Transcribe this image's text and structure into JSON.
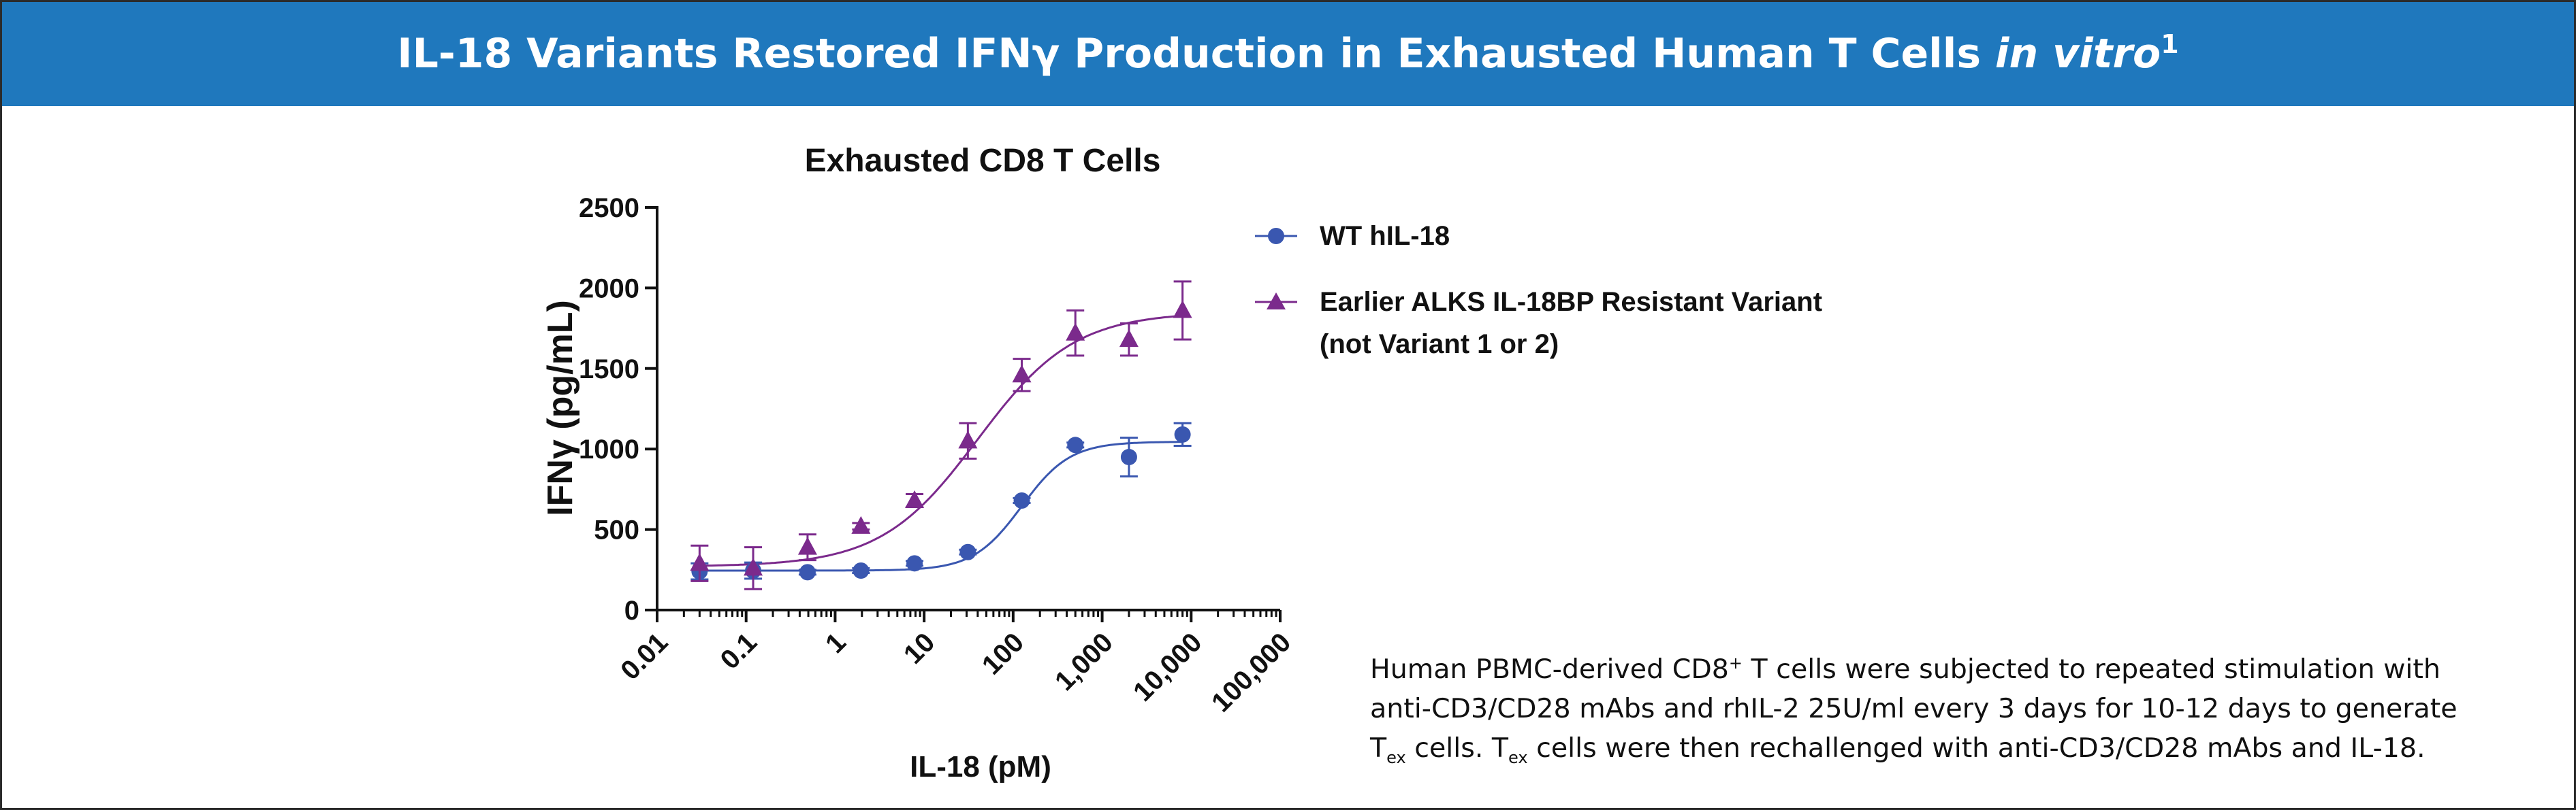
{
  "banner": {
    "title_main": "IL-18 Variants Restored IFNγ Production in Exhausted Human T Cells",
    "title_italic": "in vitro",
    "title_sup": "1",
    "bg_color": "#1f78bd"
  },
  "chart_data": {
    "type": "scatter",
    "title": "Exhausted CD8 T Cells",
    "xlabel": "IL-18 (pM)",
    "ylabel": "IFNγ (pg/mL)",
    "xscale": "log",
    "xlim": [
      0.01,
      100000
    ],
    "ylim": [
      0,
      2500
    ],
    "xticks": [
      0.01,
      0.1,
      1,
      10,
      100,
      1000,
      10000,
      100000
    ],
    "xtick_labels": [
      "0.01",
      "0.1",
      "1",
      "10",
      "100",
      "1,000",
      "10,000",
      "100,000"
    ],
    "yticks": [
      0,
      500,
      1000,
      1500,
      2000,
      2500
    ],
    "ytick_labels": [
      "0",
      "500",
      "1000",
      "1500",
      "2000",
      "2500"
    ],
    "legend_position": "right",
    "series": [
      {
        "name": "WT hIL-18",
        "marker": "circle",
        "color": "#3a57b0",
        "x": [
          0.03,
          0.12,
          0.49,
          1.95,
          7.8,
          31,
          125,
          500,
          2000,
          8000
        ],
        "y": [
          240,
          245,
          235,
          245,
          290,
          360,
          680,
          1025,
          950,
          1090
        ],
        "err": [
          50,
          50,
          15,
          15,
          15,
          15,
          15,
          15,
          120,
          70
        ],
        "fit": {
          "bottom": 245,
          "top": 1045,
          "ec50": 125,
          "hill": 1.6
        }
      },
      {
        "name": "Earlier ALKS IL-18BP Resistant Variant",
        "name_line2": "(not  Variant 1 or 2)",
        "marker": "triangle",
        "color": "#7b2a8c",
        "x": [
          0.03,
          0.12,
          0.49,
          1.95,
          7.8,
          31,
          125,
          500,
          2000,
          8000
        ],
        "y": [
          290,
          260,
          390,
          520,
          680,
          1050,
          1460,
          1720,
          1680,
          1860
        ],
        "err": [
          110,
          130,
          80,
          20,
          40,
          110,
          100,
          140,
          100,
          180
        ],
        "fit": {
          "bottom": 270,
          "top": 1850,
          "ec50": 40,
          "hill": 0.8
        }
      }
    ]
  },
  "footnote": {
    "line1": "Human PBMC-derived CD8",
    "line1_sup": "+",
    "line1_tail": " T cells were subjected to repeated stimulation with",
    "line2": "anti-CD3/CD28 mAbs and rhIL-2 25U/ml every 3 days for 10-12 days to generate",
    "line3_t": "T",
    "line3_sub": "ex",
    "line3_mid": " cells. T",
    "line3_sub2": "ex",
    "line3_tail": " cells were then rechallenged with anti-CD3/CD28 mAbs and IL-18."
  }
}
